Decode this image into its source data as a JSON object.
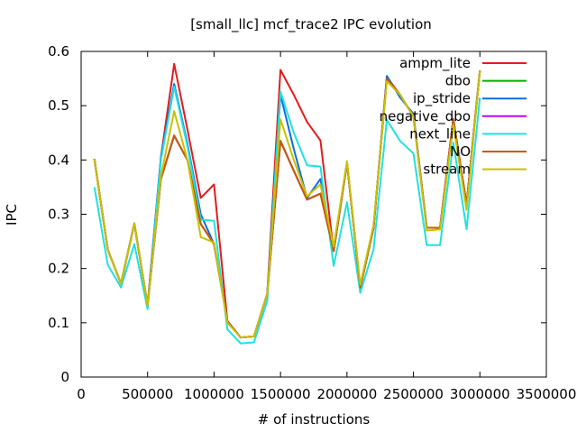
{
  "chart_data": {
    "type": "line",
    "title": "[small_llc] mcf_trace2 IPC evolution",
    "xlabel": "# of instructions",
    "ylabel": "IPC",
    "xlim": [
      0,
      3500000
    ],
    "ylim": [
      0,
      0.6
    ],
    "xticks": [
      0,
      500000,
      1000000,
      1500000,
      2000000,
      2500000,
      3000000,
      3500000
    ],
    "xtick_labels": [
      "0",
      "500000",
      "1000000",
      "1500000",
      "2000000",
      "2500000",
      "3000000",
      "3500000"
    ],
    "yticks": [
      0,
      0.1,
      0.2,
      0.3,
      0.4,
      0.5,
      0.6
    ],
    "ytick_labels": [
      "0",
      "0.1",
      "0.2",
      "0.3",
      "0.4",
      "0.5",
      "0.6"
    ],
    "grid": false,
    "legend_position": "top-right",
    "x": [
      100000,
      200000,
      300000,
      400000,
      500000,
      600000,
      700000,
      800000,
      900000,
      1000000,
      1100000,
      1200000,
      1300000,
      1400000,
      1500000,
      1600000,
      1700000,
      1800000,
      1900000,
      2000000,
      2100000,
      2200000,
      2300000,
      2400000,
      2500000,
      2600000,
      2700000,
      2800000,
      2900000,
      3000000
    ],
    "series": [
      {
        "name": "ampm_lite",
        "color": "#e41a1c",
        "values": [
          0.402,
          0.235,
          0.172,
          0.283,
          0.132,
          0.405,
          0.577,
          0.456,
          0.33,
          0.355,
          0.103,
          0.073,
          0.075,
          0.153,
          0.566,
          0.52,
          0.47,
          0.436,
          0.232,
          0.395,
          0.165,
          0.275,
          0.553,
          0.52,
          0.48,
          0.275,
          0.275,
          0.475,
          0.318,
          0.565
        ]
      },
      {
        "name": "dbo",
        "color": "#00b000",
        "values": [
          0.402,
          0.235,
          0.172,
          0.283,
          0.132,
          0.365,
          0.445,
          0.4,
          0.282,
          0.245,
          0.103,
          0.073,
          0.075,
          0.153,
          0.435,
          0.38,
          0.327,
          0.338,
          0.232,
          0.395,
          0.165,
          0.275,
          0.55,
          0.52,
          0.48,
          0.275,
          0.275,
          0.475,
          0.318,
          0.565
        ]
      },
      {
        "name": "ip_stride",
        "color": "#0a6ee0",
        "values": [
          0.402,
          0.235,
          0.172,
          0.283,
          0.132,
          0.405,
          0.54,
          0.43,
          0.3,
          0.245,
          0.103,
          0.073,
          0.075,
          0.153,
          0.52,
          0.42,
          0.33,
          0.365,
          0.232,
          0.395,
          0.165,
          0.275,
          0.555,
          0.515,
          0.485,
          0.275,
          0.275,
          0.475,
          0.318,
          0.565
        ]
      },
      {
        "name": "negative_dbo",
        "color": "#c000ff",
        "values": [
          0.402,
          0.235,
          0.172,
          0.283,
          0.132,
          0.365,
          0.445,
          0.4,
          0.282,
          0.245,
          0.103,
          0.073,
          0.075,
          0.153,
          0.435,
          0.38,
          0.327,
          0.338,
          0.232,
          0.395,
          0.165,
          0.275,
          0.55,
          0.52,
          0.48,
          0.275,
          0.275,
          0.475,
          0.318,
          0.565
        ]
      },
      {
        "name": "next_line",
        "color": "#22e0e0",
        "values": [
          0.35,
          0.207,
          0.165,
          0.245,
          0.125,
          0.4,
          0.535,
          0.425,
          0.29,
          0.288,
          0.088,
          0.062,
          0.064,
          0.14,
          0.526,
          0.45,
          0.39,
          0.388,
          0.205,
          0.322,
          0.155,
          0.235,
          0.474,
          0.435,
          0.412,
          0.243,
          0.243,
          0.432,
          0.272,
          0.515
        ]
      },
      {
        "name": "NO",
        "color": "#c85a00",
        "values": [
          0.402,
          0.235,
          0.172,
          0.283,
          0.132,
          0.365,
          0.445,
          0.4,
          0.282,
          0.245,
          0.103,
          0.073,
          0.075,
          0.153,
          0.435,
          0.38,
          0.327,
          0.338,
          0.232,
          0.395,
          0.165,
          0.275,
          0.55,
          0.52,
          0.48,
          0.275,
          0.275,
          0.475,
          0.318,
          0.565
        ]
      },
      {
        "name": "stream",
        "color": "#c8c000",
        "values": [
          0.402,
          0.235,
          0.172,
          0.283,
          0.132,
          0.37,
          0.49,
          0.4,
          0.258,
          0.248,
          0.1,
          0.073,
          0.075,
          0.153,
          0.475,
          0.4,
          0.333,
          0.355,
          0.24,
          0.398,
          0.17,
          0.28,
          0.545,
          0.52,
          0.48,
          0.27,
          0.272,
          0.465,
          0.308,
          0.565
        ]
      }
    ]
  }
}
